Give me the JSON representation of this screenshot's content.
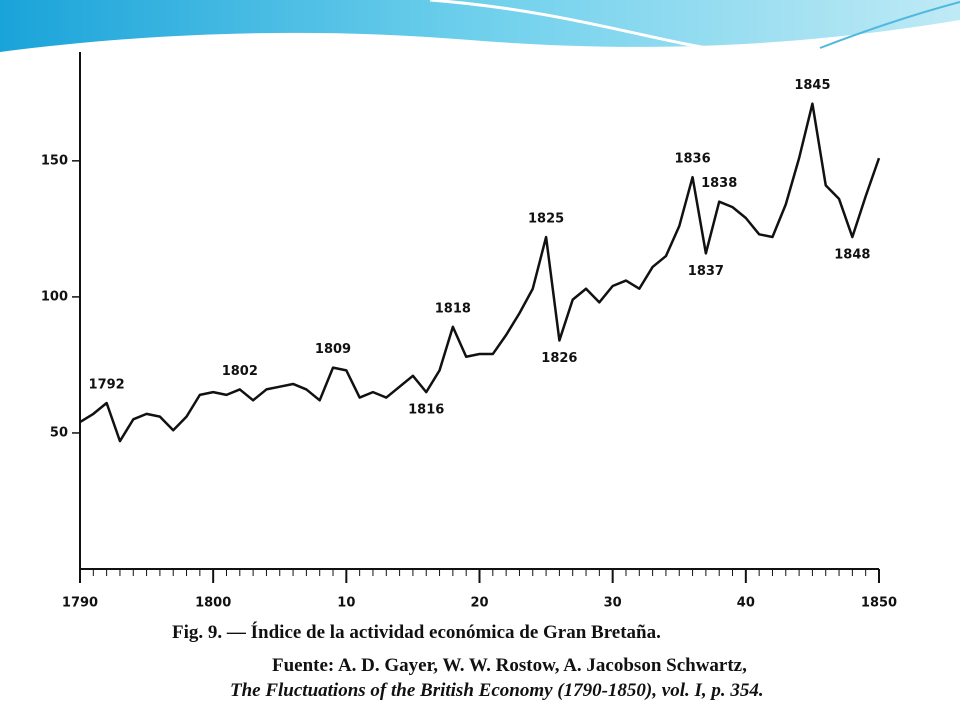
{
  "chart_data": {
    "type": "line",
    "caption": "Fig. 9. — Índice de la actividad económica de Gran Bretaña.",
    "source": [
      "Fuente: A. D. Gayer, W. W. Rostow, A. Jacobson Schwartz,",
      "The Fluctuations of the British Economy (1790-1850), vol. I, p. 354."
    ],
    "x": [
      1790,
      1791,
      1792,
      1793,
      1794,
      1795,
      1796,
      1797,
      1798,
      1799,
      1800,
      1801,
      1802,
      1803,
      1804,
      1805,
      1806,
      1807,
      1808,
      1809,
      1810,
      1811,
      1812,
      1813,
      1814,
      1815,
      1816,
      1817,
      1818,
      1819,
      1820,
      1821,
      1822,
      1823,
      1824,
      1825,
      1826,
      1827,
      1828,
      1829,
      1830,
      1831,
      1832,
      1833,
      1834,
      1835,
      1836,
      1837,
      1838,
      1839,
      1840,
      1841,
      1842,
      1843,
      1844,
      1845,
      1846,
      1847,
      1848,
      1849,
      1850
    ],
    "values": [
      54,
      57,
      61,
      47,
      55,
      57,
      56,
      51,
      56,
      64,
      65,
      64,
      66,
      62,
      66,
      67,
      68,
      66,
      62,
      74,
      73,
      63,
      65,
      63,
      67,
      71,
      65,
      73,
      89,
      78,
      79,
      79,
      86,
      94,
      103,
      122,
      84,
      99,
      103,
      98,
      104,
      106,
      103,
      111,
      115,
      126,
      144,
      116,
      135,
      133,
      129,
      123,
      122,
      134,
      151,
      171,
      141,
      136,
      122,
      137,
      151
    ],
    "color": "#111111",
    "xlim": [
      1790,
      1850
    ],
    "xticks": [
      1790,
      1800,
      {
        "value": 1810,
        "label": "10"
      },
      {
        "value": 1820,
        "label": "20"
      },
      {
        "value": 1830,
        "label": "30"
      },
      {
        "value": 1840,
        "label": "40"
      },
      1850
    ],
    "ylim": [
      0,
      190
    ],
    "yticks": [
      50,
      100,
      150
    ],
    "grid": false,
    "annotations": [
      {
        "text": "1792",
        "x": 1792
      },
      {
        "text": "1802",
        "x": 1802
      },
      {
        "text": "1809",
        "x": 1809
      },
      {
        "text": "1816",
        "x": 1816
      },
      {
        "text": "1818",
        "x": 1818
      },
      {
        "text": "1825",
        "x": 1825
      },
      {
        "text": "1826",
        "x": 1826
      },
      {
        "text": "1836",
        "x": 1836
      },
      {
        "text": "1837",
        "x": 1837
      },
      {
        "text": "1838",
        "x": 1838
      },
      {
        "text": "1845",
        "x": 1845
      },
      {
        "text": "1848",
        "x": 1848
      }
    ]
  }
}
